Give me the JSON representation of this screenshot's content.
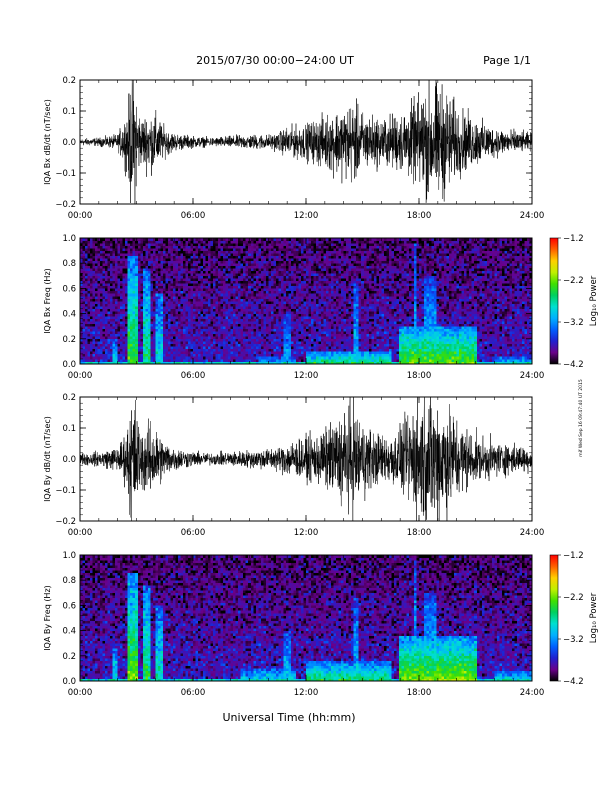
{
  "header": {
    "title": "2015/07/30  00:00−24:00 UT",
    "page": "Page 1/1"
  },
  "xaxis_label": "Universal Time (hh:mm)",
  "stamp": "mif Wed Sep 16 09:47:40 UT 2015",
  "chart_data": [
    {
      "type": "line",
      "ylabel": "IQA Bx dB/dt (nT/sec)",
      "x_range": [
        "00:00",
        "24:00"
      ],
      "xticks": [
        "00:00",
        "06:00",
        "12:00",
        "18:00",
        "24:00"
      ],
      "ylim": [
        -0.2,
        0.2
      ],
      "yticks": [
        "−0.2",
        "−0.1",
        "0.0",
        "0.1",
        "0.2"
      ],
      "yticks_values": [
        -0.2,
        -0.1,
        0,
        0.1,
        0.2
      ],
      "series": [
        {
          "hours": [
            0,
            1,
            2,
            2.5,
            2.7,
            2.9,
            3.2,
            3.6,
            4,
            4.5,
            5,
            6,
            7,
            8,
            9,
            10,
            10.5,
            11,
            12,
            13,
            14,
            14.5,
            15,
            15.5,
            16,
            17,
            18,
            18.5,
            19,
            19.5,
            20,
            21,
            22,
            23,
            24
          ],
          "amplitude": [
            0.012,
            0.014,
            0.025,
            0.1,
            0.22,
            0.22,
            0.08,
            0.1,
            0.1,
            0.05,
            0.03,
            0.02,
            0.015,
            0.02,
            0.025,
            0.025,
            0.03,
            0.05,
            0.06,
            0.09,
            0.12,
            0.14,
            0.1,
            0.09,
            0.08,
            0.1,
            0.15,
            0.2,
            0.2,
            0.18,
            0.12,
            0.08,
            0.05,
            0.04,
            0.03
          ]
        }
      ]
    },
    {
      "type": "heatmap",
      "ylabel": "IQA Bx Freq (Hz)",
      "x_range": [
        "00:00",
        "24:00"
      ],
      "xticks": [
        "00:00",
        "06:00",
        "12:00",
        "18:00",
        "24:00"
      ],
      "ylim": [
        0,
        1
      ],
      "yticks": [
        "0.0",
        "0.2",
        "0.4",
        "0.6",
        "0.8",
        "1.0"
      ],
      "yticks_values": [
        0,
        0.2,
        0.4,
        0.6,
        0.8,
        1
      ],
      "colorbar": {
        "label": "Log₁₀ Power",
        "range": [
          -4.2,
          -1.2
        ],
        "ticks": [
          "−1.2",
          "−2.2",
          "−3.2",
          "−4.2"
        ],
        "ticks_values": [
          -1.2,
          -2.2,
          -3.2,
          -4.2
        ],
        "colors": [
          "#000000",
          "#6a008a",
          "#2020d0",
          "#0060ff",
          "#00b0ff",
          "#00e0d0",
          "#00d060",
          "#40e000",
          "#c0f000",
          "#ffd000",
          "#ff6000",
          "#ff0000"
        ]
      },
      "enhancements": [
        {
          "start_hour": 1.7,
          "end_hour": 2.0,
          "max_freq": 0.2,
          "level": -2.9
        },
        {
          "start_hour": 2.5,
          "end_hour": 3.0,
          "max_freq": 0.85,
          "level": -2.3
        },
        {
          "start_hour": 3.4,
          "end_hour": 3.7,
          "max_freq": 0.75,
          "level": -2.6
        },
        {
          "start_hour": 4.0,
          "end_hour": 4.4,
          "max_freq": 0.55,
          "level": -2.8
        },
        {
          "start_hour": 9.5,
          "end_hour": 11.5,
          "max_freq": 0.05,
          "level": -3.0
        },
        {
          "start_hour": 10.8,
          "end_hour": 11.2,
          "max_freq": 0.4,
          "level": -3.1
        },
        {
          "start_hour": 12.0,
          "end_hour": 16.5,
          "max_freq": 0.1,
          "level": -2.5
        },
        {
          "start_hour": 14.6,
          "end_hour": 14.8,
          "max_freq": 0.65,
          "level": -3.0
        },
        {
          "start_hour": 17.0,
          "end_hour": 21.0,
          "max_freq": 0.3,
          "level": -2.2
        },
        {
          "start_hour": 17.7,
          "end_hour": 17.9,
          "max_freq": 0.95,
          "level": -3.0
        },
        {
          "start_hour": 18.3,
          "end_hour": 18.9,
          "max_freq": 0.7,
          "level": -3.0
        },
        {
          "start_hour": 22.0,
          "end_hour": 24.0,
          "max_freq": 0.05,
          "level": -2.8
        }
      ]
    },
    {
      "type": "line",
      "ylabel": "IQA By dB/dt (nT/sec)",
      "x_range": [
        "00:00",
        "24:00"
      ],
      "xticks": [
        "00:00",
        "06:00",
        "12:00",
        "18:00",
        "24:00"
      ],
      "ylim": [
        -0.2,
        0.2
      ],
      "yticks": [
        "−0.2",
        "−0.1",
        "0.0",
        "0.1",
        "0.2"
      ],
      "yticks_values": [
        -0.2,
        -0.1,
        0,
        0.1,
        0.2
      ],
      "series": [
        {
          "hours": [
            0,
            1,
            2,
            2.5,
            2.7,
            2.9,
            3.2,
            3.6,
            4,
            4.5,
            5,
            6,
            7,
            8,
            9,
            10,
            10.5,
            11,
            12,
            13,
            14,
            14.5,
            15,
            15.5,
            16,
            17,
            18,
            18.5,
            19,
            19.5,
            20,
            21,
            22,
            23,
            24
          ],
          "amplitude": [
            0.02,
            0.025,
            0.04,
            0.1,
            0.22,
            0.22,
            0.1,
            0.12,
            0.11,
            0.06,
            0.04,
            0.025,
            0.02,
            0.025,
            0.03,
            0.035,
            0.04,
            0.06,
            0.07,
            0.1,
            0.16,
            0.2,
            0.13,
            0.1,
            0.08,
            0.1,
            0.22,
            0.22,
            0.22,
            0.2,
            0.14,
            0.08,
            0.06,
            0.05,
            0.04
          ]
        }
      ]
    },
    {
      "type": "heatmap",
      "ylabel": "IQA By Freq (Hz)",
      "x_range": [
        "00:00",
        "24:00"
      ],
      "xticks": [
        "00:00",
        "06:00",
        "12:00",
        "18:00",
        "24:00"
      ],
      "ylim": [
        0,
        1
      ],
      "yticks": [
        "0.0",
        "0.2",
        "0.4",
        "0.6",
        "0.8",
        "1.0"
      ],
      "yticks_values": [
        0,
        0.2,
        0.4,
        0.6,
        0.8,
        1
      ],
      "colorbar": {
        "label": "Log₁₀ Power",
        "range": [
          -4.2,
          -1.2
        ],
        "ticks": [
          "−1.2",
          "−2.2",
          "−3.2",
          "−4.2"
        ],
        "ticks_values": [
          -1.2,
          -2.2,
          -3.2,
          -4.2
        ],
        "colors": [
          "#000000",
          "#6a008a",
          "#2020d0",
          "#0060ff",
          "#00b0ff",
          "#00e0d0",
          "#00d060",
          "#40e000",
          "#c0f000",
          "#ffd000",
          "#ff6000",
          "#ff0000"
        ]
      },
      "enhancements": [
        {
          "start_hour": 1.7,
          "end_hour": 2.0,
          "max_freq": 0.25,
          "level": -2.8
        },
        {
          "start_hour": 2.5,
          "end_hour": 3.0,
          "max_freq": 0.85,
          "level": -2.2
        },
        {
          "start_hour": 3.4,
          "end_hour": 3.7,
          "max_freq": 0.75,
          "level": -2.5
        },
        {
          "start_hour": 4.0,
          "end_hour": 4.4,
          "max_freq": 0.6,
          "level": -2.7
        },
        {
          "start_hour": 8.5,
          "end_hour": 11.5,
          "max_freq": 0.1,
          "level": -2.9
        },
        {
          "start_hour": 10.8,
          "end_hour": 11.2,
          "max_freq": 0.4,
          "level": -3.0
        },
        {
          "start_hour": 12.0,
          "end_hour": 16.5,
          "max_freq": 0.15,
          "level": -2.5
        },
        {
          "start_hour": 14.6,
          "end_hour": 14.8,
          "max_freq": 0.65,
          "level": -3.0
        },
        {
          "start_hour": 17.0,
          "end_hour": 21.0,
          "max_freq": 0.35,
          "level": -2.1
        },
        {
          "start_hour": 17.7,
          "end_hour": 17.9,
          "max_freq": 0.95,
          "level": -3.0
        },
        {
          "start_hour": 18.3,
          "end_hour": 18.9,
          "max_freq": 0.7,
          "level": -2.9
        },
        {
          "start_hour": 22.0,
          "end_hour": 24.0,
          "max_freq": 0.08,
          "level": -2.7
        }
      ]
    }
  ]
}
